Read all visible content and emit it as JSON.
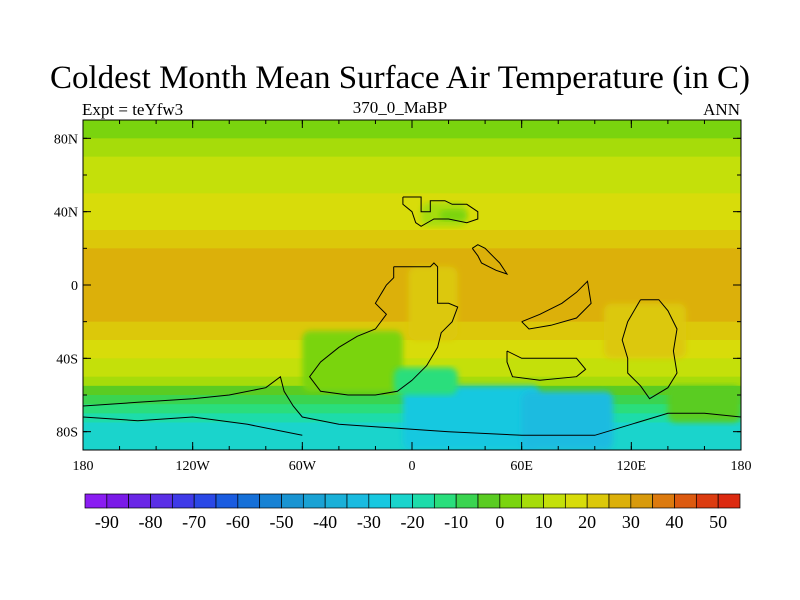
{
  "chart_data": {
    "type": "heatmap",
    "title": "Coldest Month Mean Surface Air Temperature (in C)",
    "left_subtitle": "Expt = teYfw3",
    "center_subtitle": "370_0_MaBP",
    "right_subtitle": "ANN",
    "x_range": [
      -180,
      180
    ],
    "y_range": [
      -90,
      90
    ],
    "x_ticks": [
      {
        "value": -180,
        "label": "180"
      },
      {
        "value": -120,
        "label": "120W"
      },
      {
        "value": -60,
        "label": "60W"
      },
      {
        "value": 0,
        "label": "0"
      },
      {
        "value": 60,
        "label": "60E"
      },
      {
        "value": 120,
        "label": "120E"
      },
      {
        "value": 180,
        "label": "180"
      }
    ],
    "y_ticks": [
      {
        "value": 80,
        "label": "80N"
      },
      {
        "value": 40,
        "label": "40N"
      },
      {
        "value": 0,
        "label": "0"
      },
      {
        "value": -40,
        "label": "40S"
      },
      {
        "value": -80,
        "label": "80S"
      }
    ],
    "colorbar": {
      "levels": [
        -95,
        -90,
        -85,
        -80,
        -75,
        -70,
        -65,
        -60,
        -55,
        -50,
        -45,
        -40,
        -35,
        -30,
        -25,
        -20,
        -15,
        -10,
        -5,
        0,
        5,
        10,
        15,
        20,
        25,
        30,
        35,
        40,
        45,
        50,
        55
      ],
      "colors": [
        "#8a1df2",
        "#7a1ae8",
        "#6a26e6",
        "#5a2fe6",
        "#3f3ae8",
        "#2a48e6",
        "#1a5ce0",
        "#1670d8",
        "#1782d4",
        "#1994d2",
        "#1aa2d4",
        "#1ab0d8",
        "#1abbe0",
        "#18c8e0",
        "#1ad4cc",
        "#1ddcaa",
        "#2ade7c",
        "#3ad450",
        "#5acc22",
        "#7ad40e",
        "#a6dc0a",
        "#c4e00a",
        "#d8dc0a",
        "#dcc80a",
        "#dcb00a",
        "#d89a0c",
        "#dc7a0e",
        "#dc5a10",
        "#dc3c10",
        "#dc2a10"
      ],
      "labels": [
        "-90",
        "-80",
        "-70",
        "-60",
        "-50",
        "-40",
        "-30",
        "-20",
        "-10",
        "0",
        "10",
        "20",
        "30",
        "40",
        "50"
      ]
    },
    "zonal_bands": [
      {
        "lat_top": 90,
        "lat_bottom": 80,
        "value": 2
      },
      {
        "lat_top": 80,
        "lat_bottom": 70,
        "value": 6
      },
      {
        "lat_top": 70,
        "lat_bottom": 60,
        "value": 10
      },
      {
        "lat_top": 60,
        "lat_bottom": 50,
        "value": 13
      },
      {
        "lat_top": 50,
        "lat_bottom": 40,
        "value": 16
      },
      {
        "lat_top": 40,
        "lat_bottom": 30,
        "value": 18
      },
      {
        "lat_top": 30,
        "lat_bottom": 20,
        "value": 21
      },
      {
        "lat_top": 20,
        "lat_bottom": 10,
        "value": 26
      },
      {
        "lat_top": 10,
        "lat_bottom": -10,
        "value": 27
      },
      {
        "lat_top": -10,
        "lat_bottom": -20,
        "value": 26
      },
      {
        "lat_top": -20,
        "lat_bottom": -30,
        "value": 22
      },
      {
        "lat_top": -30,
        "lat_bottom": -40,
        "value": 18
      },
      {
        "lat_top": -40,
        "lat_bottom": -50,
        "value": 12
      },
      {
        "lat_top": -50,
        "lat_bottom": -55,
        "value": 6
      },
      {
        "lat_top": -55,
        "lat_bottom": -60,
        "value": -2
      },
      {
        "lat_top": -60,
        "lat_bottom": -65,
        "value": -8
      },
      {
        "lat_top": -65,
        "lat_bottom": -70,
        "value": -14
      },
      {
        "lat_top": -70,
        "lat_bottom": -75,
        "value": -18
      },
      {
        "lat_top": -75,
        "lat_bottom": -90,
        "value": -22
      }
    ],
    "patches": [
      {
        "lon": [
          -60,
          -5
        ],
        "lat": [
          -25,
          -58
        ],
        "value": 3
      },
      {
        "lon": [
          -5,
          70
        ],
        "lat": [
          -55,
          -90
        ],
        "value": -28
      },
      {
        "lon": [
          -10,
          25
        ],
        "lat": [
          -45,
          -60
        ],
        "value": -12
      },
      {
        "lon": [
          60,
          110
        ],
        "lat": [
          -58,
          -90
        ],
        "value": -32
      },
      {
        "lon": [
          -2,
          25
        ],
        "lat": [
          10,
          -30
        ],
        "value": 22
      },
      {
        "lon": [
          5,
          30
        ],
        "lat": [
          45,
          32
        ],
        "value": 6
      },
      {
        "lon": [
          15,
          30
        ],
        "lat": [
          41,
          35
        ],
        "value": 0
      },
      {
        "lon": [
          140,
          180
        ],
        "lat": [
          -55,
          -75
        ],
        "value": -4
      },
      {
        "lon": [
          105,
          150
        ],
        "lat": [
          -10,
          -40
        ],
        "value": 20
      }
    ],
    "continent_outlines": [
      [
        [
          -5,
          48
        ],
        [
          5,
          48
        ],
        [
          5,
          40
        ],
        [
          10,
          40
        ],
        [
          10,
          46
        ],
        [
          18,
          46
        ],
        [
          22,
          44
        ],
        [
          30,
          44
        ],
        [
          36,
          40
        ],
        [
          36,
          36
        ],
        [
          30,
          34
        ],
        [
          20,
          36
        ],
        [
          12,
          36
        ],
        [
          5,
          32
        ],
        [
          2,
          34
        ],
        [
          0,
          40
        ],
        [
          -5,
          44
        ],
        [
          -5,
          48
        ]
      ],
      [
        [
          -10,
          10
        ],
        [
          0,
          10
        ],
        [
          10,
          10
        ],
        [
          12,
          12
        ],
        [
          14,
          10
        ],
        [
          14,
          -10
        ],
        [
          20,
          -10
        ],
        [
          25,
          -12
        ],
        [
          22,
          -20
        ],
        [
          16,
          -26
        ],
        [
          14,
          -34
        ],
        [
          8,
          -44
        ],
        [
          0,
          -52
        ],
        [
          -8,
          -58
        ],
        [
          -20,
          -60
        ],
        [
          -35,
          -60
        ],
        [
          -50,
          -58
        ],
        [
          -56,
          -50
        ],
        [
          -50,
          -42
        ],
        [
          -40,
          -34
        ],
        [
          -30,
          -28
        ],
        [
          -20,
          -24
        ],
        [
          -14,
          -16
        ],
        [
          -20,
          -10
        ],
        [
          -14,
          0
        ],
        [
          -10,
          4
        ],
        [
          -10,
          10
        ]
      ],
      [
        [
          33,
          20
        ],
        [
          36,
          16
        ],
        [
          38,
          12
        ],
        [
          42,
          10
        ],
        [
          46,
          8
        ],
        [
          52,
          6
        ],
        [
          48,
          12
        ],
        [
          44,
          16
        ],
        [
          40,
          20
        ],
        [
          36,
          22
        ],
        [
          33,
          20
        ]
      ],
      [
        [
          60,
          -20
        ],
        [
          70,
          -16
        ],
        [
          82,
          -10
        ],
        [
          90,
          -4
        ],
        [
          96,
          2
        ],
        [
          98,
          -10
        ],
        [
          90,
          -18
        ],
        [
          76,
          -22
        ],
        [
          64,
          -24
        ],
        [
          60,
          -20
        ]
      ],
      [
        [
          52,
          -36
        ],
        [
          60,
          -40
        ],
        [
          80,
          -40
        ],
        [
          90,
          -40
        ],
        [
          95,
          -46
        ],
        [
          90,
          -50
        ],
        [
          70,
          -52
        ],
        [
          55,
          -50
        ],
        [
          52,
          -42
        ],
        [
          52,
          -36
        ]
      ],
      [
        [
          125,
          -8
        ],
        [
          135,
          -8
        ],
        [
          140,
          -14
        ],
        [
          145,
          -24
        ],
        [
          143,
          -36
        ],
        [
          145,
          -48
        ],
        [
          140,
          -56
        ],
        [
          130,
          -62
        ],
        [
          125,
          -55
        ],
        [
          118,
          -48
        ],
        [
          118,
          -40
        ],
        [
          115,
          -30
        ],
        [
          118,
          -20
        ],
        [
          125,
          -8
        ]
      ],
      [
        [
          -180,
          -66
        ],
        [
          -150,
          -64
        ],
        [
          -120,
          -62
        ],
        [
          -100,
          -60
        ],
        [
          -80,
          -56
        ],
        [
          -72,
          -50
        ],
        [
          -70,
          -58
        ],
        [
          -65,
          -66
        ],
        [
          -60,
          -72
        ],
        [
          -40,
          -76
        ],
        [
          -10,
          -78
        ],
        [
          20,
          -80
        ],
        [
          60,
          -82
        ],
        [
          100,
          -82
        ],
        [
          120,
          -76
        ],
        [
          140,
          -70
        ],
        [
          160,
          -70
        ],
        [
          180,
          -72
        ],
        [
          180,
          -90
        ],
        [
          -180,
          -90
        ],
        [
          -180,
          -66
        ]
      ],
      [
        [
          -180,
          -72
        ],
        [
          -150,
          -74
        ],
        [
          -120,
          -72
        ],
        [
          -90,
          -76
        ],
        [
          -60,
          -82
        ]
      ]
    ]
  }
}
